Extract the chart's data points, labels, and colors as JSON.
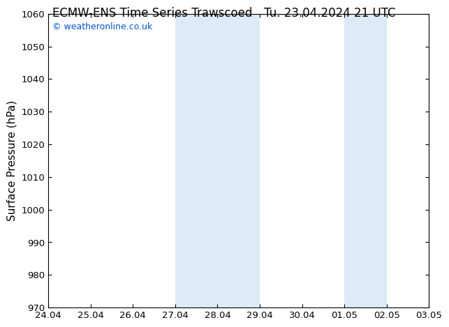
{
  "title_left": "ECMW-ENS Time Series Trawscoed",
  "title_right": "Tu. 23.04.2024 21 UTC",
  "ylabel": "Surface Pressure (hPa)",
  "ylim": [
    970,
    1060
  ],
  "yticks": [
    970,
    980,
    990,
    1000,
    1010,
    1020,
    1030,
    1040,
    1050,
    1060
  ],
  "xlim_start": 0,
  "xlim_end": 9,
  "xtick_labels": [
    "24.04",
    "25.04",
    "26.04",
    "27.04",
    "28.04",
    "29.04",
    "30.04",
    "01.05",
    "02.05",
    "03.05"
  ],
  "shaded_regions": [
    {
      "x_start": 3,
      "x_end": 5,
      "color": "#ddeaf7"
    },
    {
      "x_start": 7,
      "x_end": 8,
      "color": "#ddeaf7"
    }
  ],
  "watermark_text": "© weatheronline.co.uk",
  "watermark_color": "#0055cc",
  "background_color": "#ffffff",
  "title_fontsize": 12,
  "tick_fontsize": 9.5,
  "ylabel_fontsize": 11,
  "watermark_fontsize": 9
}
